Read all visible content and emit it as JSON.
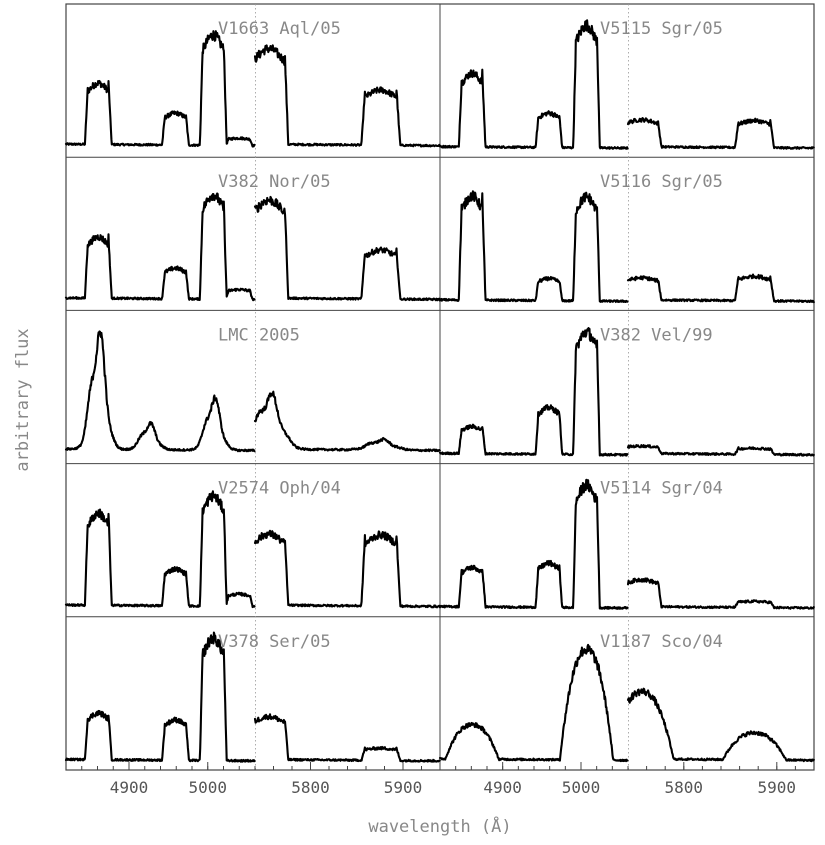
{
  "chart_data": {
    "type": "line",
    "xlabel": "wavelength (Å)",
    "ylabel": "arbitrary flux",
    "x_ticks_left": [
      "4900",
      "5000",
      "5800",
      "5900"
    ],
    "x_ticks_right": [
      "4900",
      "5000",
      "5800",
      "5900"
    ],
    "x_segments": [
      [
        4820,
        5060
      ],
      [
        5740,
        5940
      ]
    ],
    "grid": false,
    "legend": "none",
    "panels": [
      {
        "name": "V1663 Aql/05",
        "row": 0,
        "col": 0,
        "profile": "flat",
        "lines": [
          {
            "c": 4861,
            "h": 0.5
          },
          {
            "c": 4959,
            "h": 0.26
          },
          {
            "c": 5007,
            "h": 0.9
          },
          {
            "c": 5040,
            "h": 0.06
          },
          {
            "c": 5755,
            "h": 0.78
          },
          {
            "c": 5876,
            "h": 0.45
          }
        ],
        "base": 0.1
      },
      {
        "name": "V5115 Sgr/05",
        "row": 0,
        "col": 1,
        "profile": "flat",
        "lines": [
          {
            "c": 4861,
            "h": 0.6
          },
          {
            "c": 4959,
            "h": 0.28
          },
          {
            "c": 5007,
            "h": 1.0
          },
          {
            "c": 5755,
            "h": 0.22
          },
          {
            "c": 5876,
            "h": 0.22
          }
        ],
        "base": 0.02
      },
      {
        "name": "V382 Nor/05",
        "row": 1,
        "col": 0,
        "profile": "flat",
        "lines": [
          {
            "c": 4861,
            "h": 0.5
          },
          {
            "c": 4959,
            "h": 0.25
          },
          {
            "c": 5007,
            "h": 0.85
          },
          {
            "c": 5040,
            "h": 0.08
          },
          {
            "c": 5755,
            "h": 0.8
          },
          {
            "c": 5876,
            "h": 0.4
          }
        ],
        "base": 0.08
      },
      {
        "name": "V5116 Sgr/05",
        "row": 1,
        "col": 1,
        "profile": "flat",
        "lines": [
          {
            "c": 4861,
            "h": 0.85
          },
          {
            "c": 4959,
            "h": 0.18
          },
          {
            "c": 5007,
            "h": 0.85
          },
          {
            "c": 5755,
            "h": 0.18
          },
          {
            "c": 5876,
            "h": 0.2
          }
        ],
        "base": 0.02
      },
      {
        "name": "LMC 2005",
        "row": 2,
        "col": 0,
        "profile": "peaked",
        "lines": [
          {
            "c": 4861,
            "h": 0.9
          },
          {
            "c": 4925,
            "h": 0.2
          },
          {
            "c": 5007,
            "h": 0.4
          },
          {
            "c": 5755,
            "h": 0.42
          },
          {
            "c": 5876,
            "h": 0.08
          }
        ],
        "base": 0.15
      },
      {
        "name": "V382 Vel/99",
        "row": 2,
        "col": 1,
        "profile": "flat",
        "lines": [
          {
            "c": 4861,
            "h": 0.22
          },
          {
            "c": 4959,
            "h": 0.38
          },
          {
            "c": 5007,
            "h": 1.0
          },
          {
            "c": 5755,
            "h": 0.06
          },
          {
            "c": 5876,
            "h": 0.05
          }
        ],
        "base": 0.01
      },
      {
        "name": "V2574 Oph/04",
        "row": 3,
        "col": 0,
        "profile": "flat",
        "lines": [
          {
            "c": 4861,
            "h": 0.75
          },
          {
            "c": 4959,
            "h": 0.3
          },
          {
            "c": 5007,
            "h": 0.9
          },
          {
            "c": 5040,
            "h": 0.1
          },
          {
            "c": 5755,
            "h": 0.58
          },
          {
            "c": 5876,
            "h": 0.58
          }
        ],
        "base": 0.06
      },
      {
        "name": "V5114 Sgr/04",
        "row": 3,
        "col": 1,
        "profile": "flat",
        "lines": [
          {
            "c": 4861,
            "h": 0.32
          },
          {
            "c": 4959,
            "h": 0.36
          },
          {
            "c": 5007,
            "h": 1.0
          },
          {
            "c": 5755,
            "h": 0.22
          },
          {
            "c": 5876,
            "h": 0.05
          }
        ],
        "base": 0.01
      },
      {
        "name": "V378 Ser/05",
        "row": 4,
        "col": 0,
        "profile": "flat",
        "lines": [
          {
            "c": 4861,
            "h": 0.38
          },
          {
            "c": 4959,
            "h": 0.33
          },
          {
            "c": 5007,
            "h": 1.0
          },
          {
            "c": 5755,
            "h": 0.35
          },
          {
            "c": 5876,
            "h": 0.1
          }
        ],
        "base": 0.02
      },
      {
        "name": "V1187 Sco/04",
        "row": 4,
        "col": 1,
        "profile": "broad",
        "lines": [
          {
            "c": 4861,
            "h": 0.28
          },
          {
            "c": 5007,
            "h": 0.9
          },
          {
            "c": 5755,
            "h": 0.55
          },
          {
            "c": 5876,
            "h": 0.22
          }
        ],
        "base": 0.04
      }
    ]
  }
}
